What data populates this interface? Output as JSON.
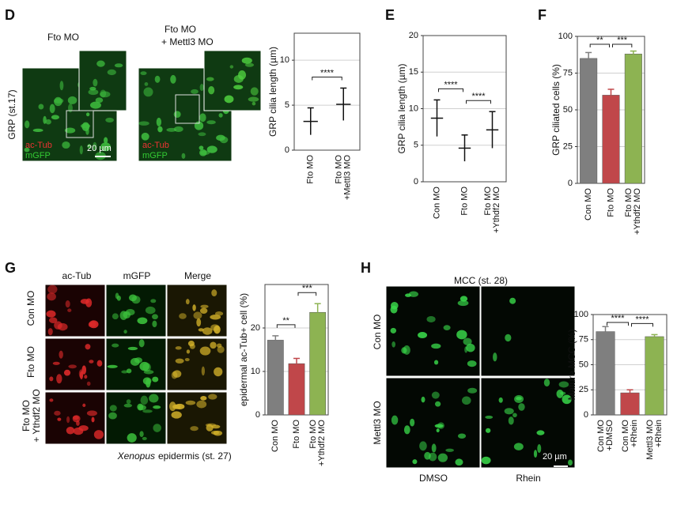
{
  "panels": {
    "D": {
      "letter": "D",
      "label1": "Fto MO",
      "label2": [
        "Fto MO",
        "+ Mettl3 MO"
      ],
      "side": "GRP (st.17)",
      "stain1": "ac-Tub",
      "stain2": "mGFP",
      "scale": "20 µm"
    },
    "E": {
      "letter": "E"
    },
    "F": {
      "letter": "F"
    },
    "G": {
      "letter": "G",
      "columns": [
        "ac-Tub",
        "mGFP",
        "Merge"
      ],
      "rows": [
        [
          "Con MO"
        ],
        [
          "Fto MO"
        ],
        [
          "Fto MO",
          "+ Ythdf2 MO"
        ]
      ],
      "caption_italic": "Xenopus",
      "caption": "epidermis (st. 27)"
    },
    "H": {
      "letter": "H",
      "title": "MCC (st. 28)",
      "rows": [
        "Con MO",
        "Mettl3 MO"
      ],
      "columns": [
        "DMSO",
        "Rhein"
      ],
      "scale": "20 µm"
    }
  },
  "chart_data": [
    {
      "type": "strip",
      "ylabel": "GRP cilia length (µm)",
      "categories": [
        [
          "Fto MO"
        ],
        [
          "Fto MO",
          "+Mettl3 MO"
        ]
      ],
      "values": [
        3.2,
        5.1
      ],
      "errors": [
        1.5,
        1.8
      ],
      "colors": [
        "#c94c4c",
        "#8fb14f"
      ],
      "ylim": [
        0,
        13
      ],
      "yticks": [
        0,
        5,
        10
      ],
      "grid": true,
      "annotations": [
        "****"
      ]
    },
    {
      "type": "strip",
      "ylabel": "GRP cilia length (µm)",
      "categories": [
        [
          "Con MO"
        ],
        [
          "Fto MO"
        ],
        [
          "Fto MO",
          "+Ythdf2 MO"
        ]
      ],
      "values": [
        8.7,
        4.6,
        7.1
      ],
      "errors": [
        2.5,
        1.8,
        2.5
      ],
      "colors": [
        "#8c8c8c",
        "#c94c4c",
        "#8fb14f"
      ],
      "ylim": [
        0,
        20
      ],
      "yticks": [
        0,
        5,
        10,
        15,
        20
      ],
      "grid": true,
      "annotations": [
        "****",
        "****"
      ]
    },
    {
      "type": "bar",
      "ylabel": "GRP ciliated cells (%)",
      "categories": [
        [
          "Con MO"
        ],
        [
          "Fto MO"
        ],
        [
          "Fto MO",
          "+Ythdf2 MO"
        ]
      ],
      "values": [
        85,
        60,
        88
      ],
      "errors": [
        4,
        4,
        2
      ],
      "colors": [
        "#7f7f7f",
        "#c0474a",
        "#8db352"
      ],
      "ylim": [
        0,
        100
      ],
      "yticks": [
        0,
        25,
        50,
        75,
        100
      ],
      "grid": true,
      "annotations": [
        "**",
        "***"
      ]
    },
    {
      "type": "bar",
      "ylabel": "epidermal ac-Tub+ cell (%)",
      "categories": [
        [
          "Con MO"
        ],
        [
          "Fto MO"
        ],
        [
          "Fto MO",
          "+Ythdf2 MO"
        ]
      ],
      "values": [
        17.2,
        11.8,
        23.6
      ],
      "errors": [
        1,
        1.2,
        2
      ],
      "colors": [
        "#7f7f7f",
        "#c0474a",
        "#8db352"
      ],
      "ylim": [
        0,
        30
      ],
      "yticks": [
        0,
        10,
        20
      ],
      "grid": true,
      "annotations": [
        "**",
        "***"
      ]
    },
    {
      "type": "bar",
      "ylabel": "Mature MCC (%)",
      "categories": [
        [
          "Con MO",
          "+DMSO"
        ],
        [
          "Con MO",
          "+Rhein"
        ],
        [
          "Mettl3 MO",
          "+Rhein"
        ]
      ],
      "values": [
        83,
        22,
        78
      ],
      "errors": [
        5,
        3,
        2
      ],
      "colors": [
        "#7f7f7f",
        "#c0474a",
        "#8db352"
      ],
      "ylim": [
        0,
        100
      ],
      "yticks": [
        0,
        25,
        50,
        75,
        100
      ],
      "grid": true,
      "annotations": [
        "****",
        "****"
      ]
    }
  ]
}
